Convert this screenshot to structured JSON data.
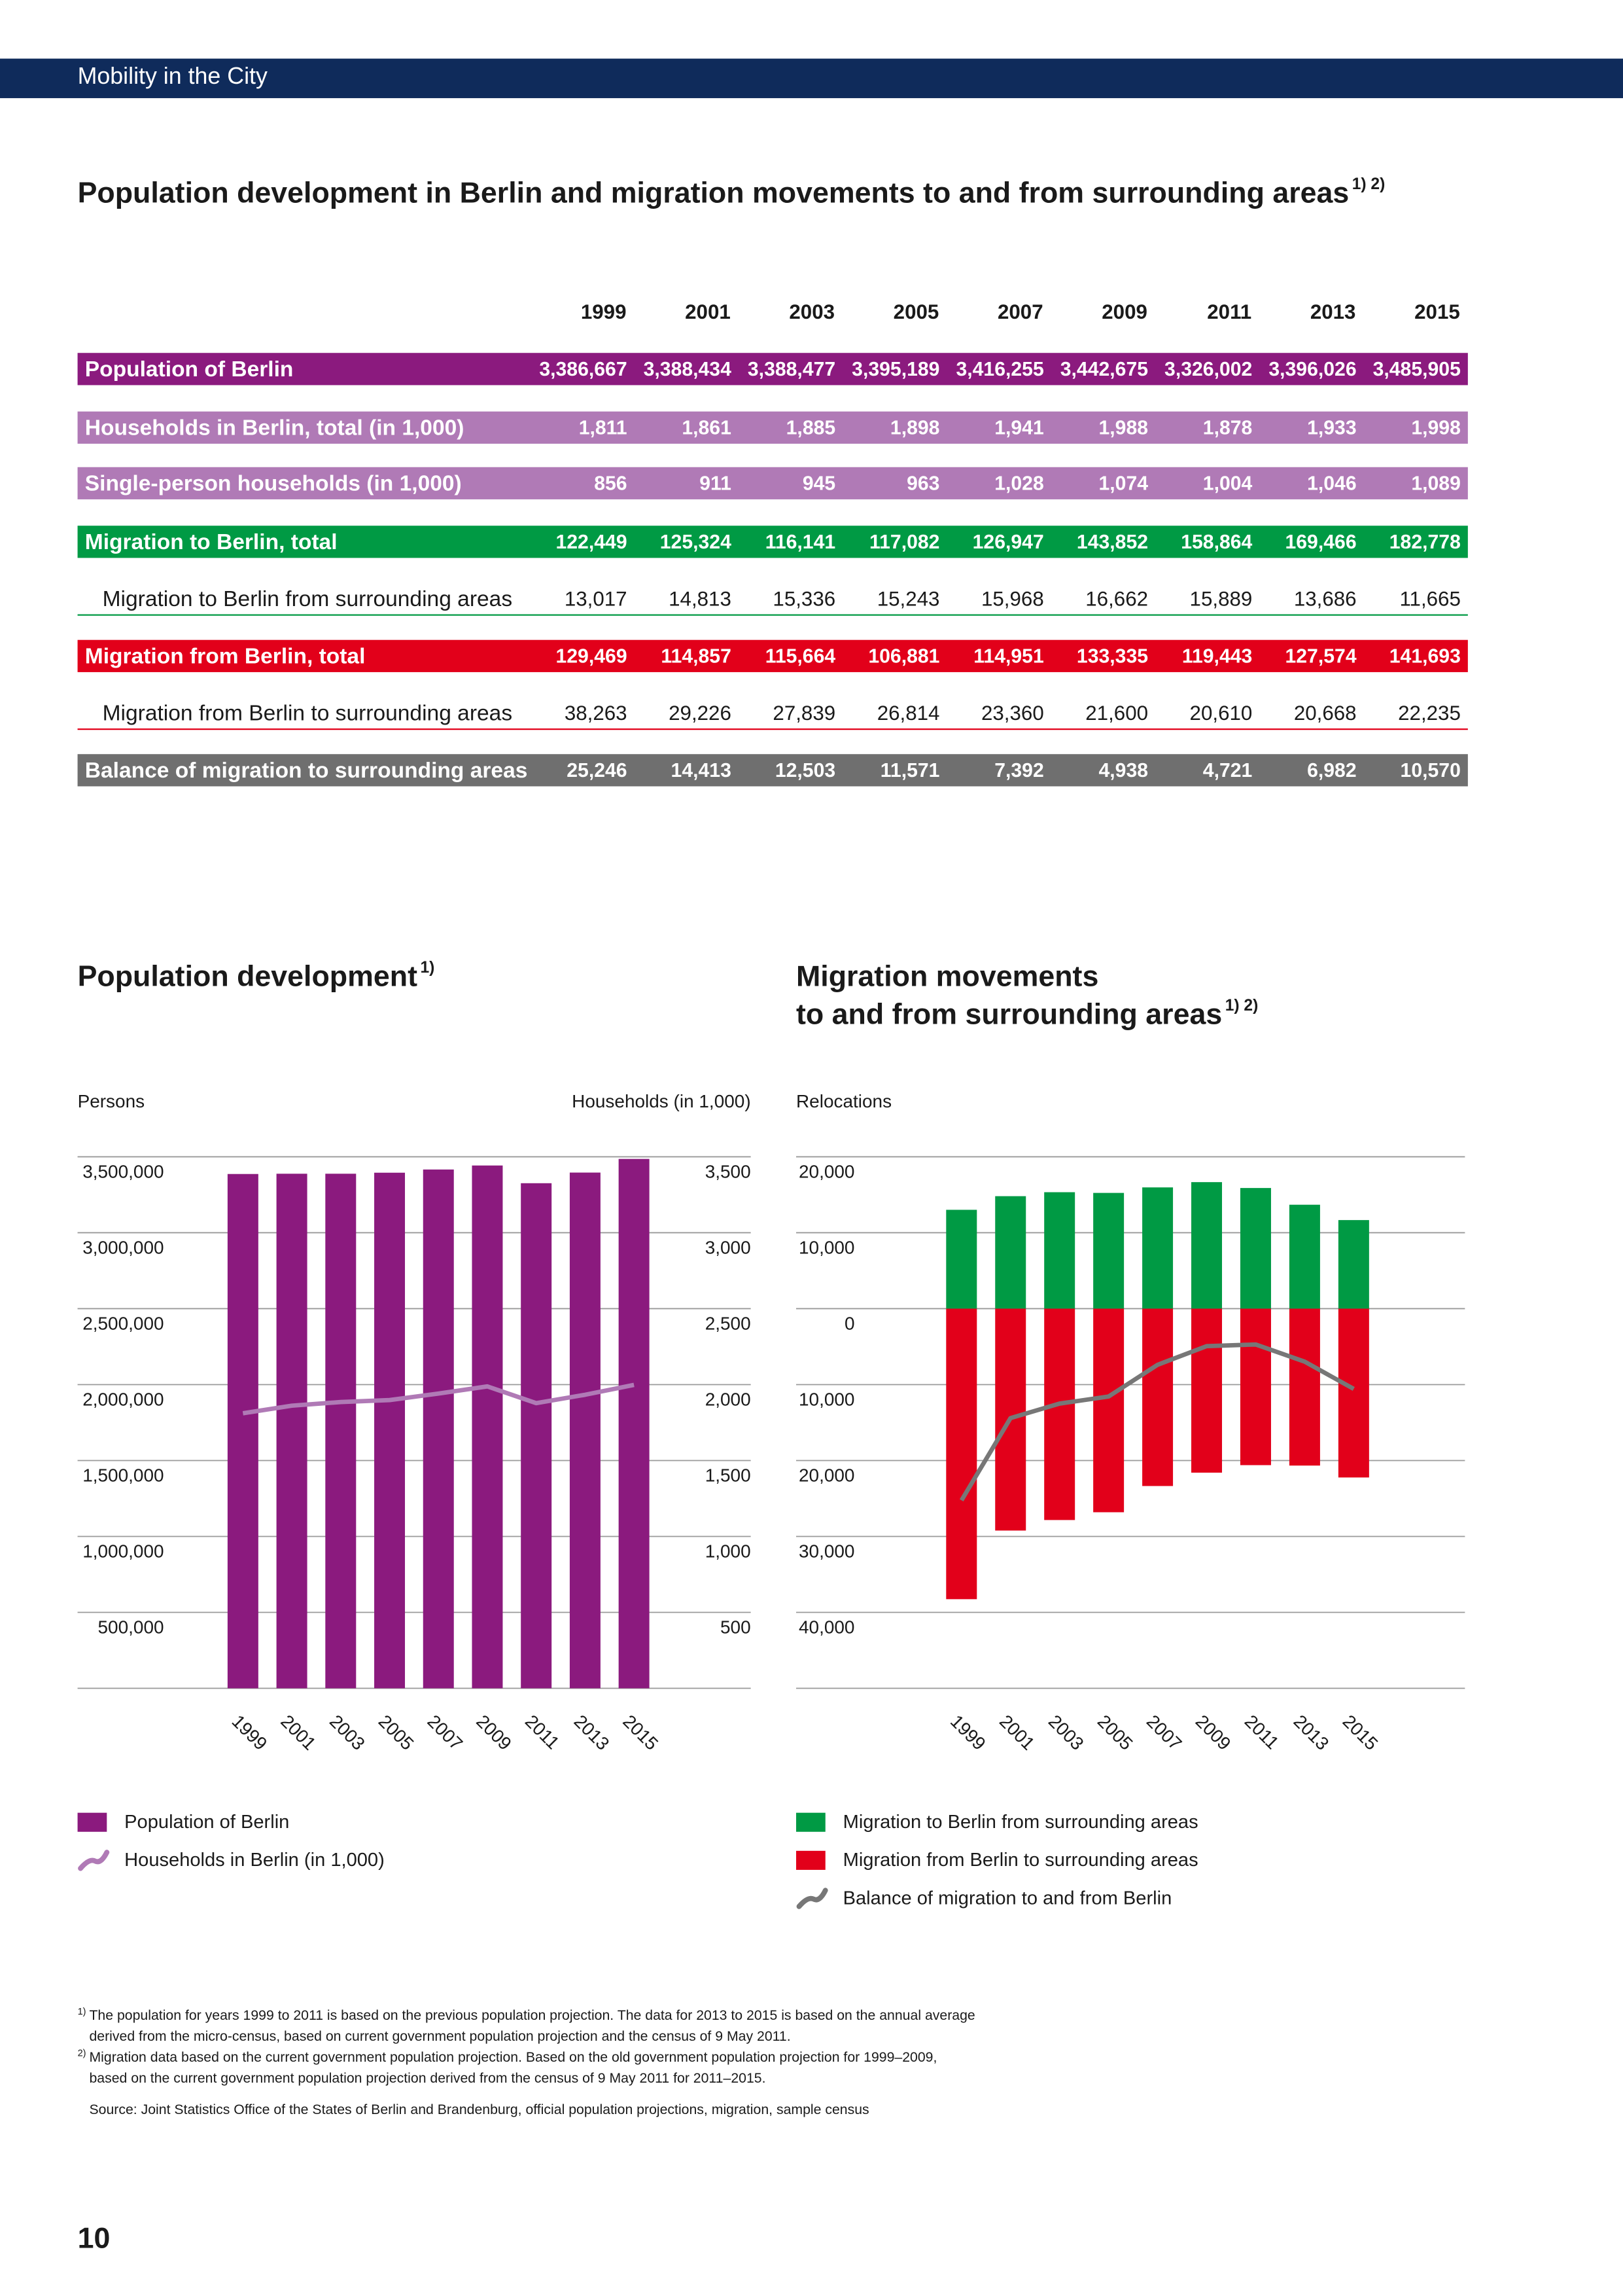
{
  "header": "Mobility in the City",
  "table": {
    "title": "Population development in Berlin and migration movements to and from surrounding areas",
    "title_note": "1) 2)",
    "columns": [
      "1999",
      "2001",
      "2003",
      "2005",
      "2007",
      "2009",
      "2011",
      "2013",
      "2015"
    ],
    "rows": [
      {
        "label": "Population of Berlin",
        "values": [
          "3,386,667",
          "3,388,434",
          "3,388,477",
          "3,395,189",
          "3,416,255",
          "3,442,675",
          "3,326,002",
          "3,396,026",
          "3,485,905"
        ]
      },
      {
        "label": "Households in Berlin, total (in 1,000)",
        "values": [
          "1,811",
          "1,861",
          "1,885",
          "1,898",
          "1,941",
          "1,988",
          "1,878",
          "1,933",
          "1,998"
        ]
      },
      {
        "label": "Single-person households (in 1,000)",
        "values": [
          "856",
          "911",
          "945",
          "963",
          "1,028",
          "1,074",
          "1,004",
          "1,046",
          "1,089"
        ]
      },
      {
        "label": "Migration to Berlin, total",
        "values": [
          "122,449",
          "125,324",
          "116,141",
          "117,082",
          "126,947",
          "143,852",
          "158,864",
          "169,466",
          "182,778"
        ]
      },
      {
        "label": "Migration to Berlin from surrounding areas",
        "values": [
          "13,017",
          "14,813",
          "15,336",
          "15,243",
          "15,968",
          "16,662",
          "15,889",
          "13,686",
          "11,665"
        ]
      },
      {
        "label": "Migration from Berlin, total",
        "values": [
          "129,469",
          "114,857",
          "115,664",
          "106,881",
          "114,951",
          "133,335",
          "119,443",
          "127,574",
          "141,693"
        ]
      },
      {
        "label": "Migration from Berlin to surrounding areas",
        "values": [
          "38,263",
          "29,226",
          "27,839",
          "26,814",
          "23,360",
          "21,600",
          "20,610",
          "20,668",
          "22,235"
        ]
      },
      {
        "label": "Balance of migration to surrounding areas",
        "values": [
          "25,246",
          "14,413",
          "12,503",
          "11,571",
          "7,392",
          "4,938",
          "4,721",
          "6,982",
          "10,570"
        ]
      }
    ]
  },
  "chart_data": [
    {
      "type": "bar",
      "title": [
        "Population development"
      ],
      "title_note": "1)",
      "ylabel": "Persons",
      "y2label": "Households (in 1,000)",
      "categories": [
        "1999",
        "2001",
        "2003",
        "2005",
        "2007",
        "2009",
        "2011",
        "2013",
        "2015"
      ],
      "ylim": [
        0,
        3500000
      ],
      "yticks": [
        {
          "value": 500000,
          "label": "500,000"
        },
        {
          "value": 1000000,
          "label": "1,000,000"
        },
        {
          "value": 1500000,
          "label": "1,500,000"
        },
        {
          "value": 2000000,
          "label": "2,000,000"
        },
        {
          "value": 2500000,
          "label": "2,500,000"
        },
        {
          "value": 3000000,
          "label": "3,000,000"
        },
        {
          "value": 3500000,
          "label": "3,500,000"
        }
      ],
      "y2lim": [
        0,
        3500
      ],
      "y2ticks": [
        500,
        {
          "value": 1000,
          "label": "1,000"
        },
        {
          "value": 1500,
          "label": "1,500"
        },
        {
          "value": 2000,
          "label": "2,000"
        },
        {
          "value": 2500,
          "label": "2,500"
        },
        {
          "value": 3000,
          "label": "3,000"
        },
        {
          "value": 3500,
          "label": "3,500"
        }
      ],
      "grid": true,
      "series": [
        {
          "name": "Population of Berlin",
          "color": "#8b1a7e",
          "values": [
            3386667,
            3388434,
            3388477,
            3395189,
            3416255,
            3442675,
            3326002,
            3396026,
            3485905
          ]
        },
        {
          "name": "Households in Berlin (in 1,000)",
          "type": "line",
          "axis": "y2",
          "color": "#b07ab6",
          "values": [
            1811,
            1861,
            1885,
            1898,
            1941,
            1988,
            1878,
            1933,
            1998
          ]
        }
      ]
    },
    {
      "type": "bar",
      "title": [
        "Migration movements",
        "to and from surrounding areas"
      ],
      "title_note": "1) 2)",
      "ylabel": "Relocations",
      "categories": [
        "1999",
        "2001",
        "2003",
        "2005",
        "2007",
        "2009",
        "2011",
        "2013",
        "2015"
      ],
      "ylim": [
        -50000,
        20000
      ],
      "yticks": [
        {
          "value": -40000,
          "label": "40,000"
        },
        {
          "value": -30000,
          "label": "30,000"
        },
        {
          "value": -20000,
          "label": "20,000"
        },
        {
          "value": -10000,
          "label": "10,000"
        },
        0,
        {
          "value": 10000,
          "label": "10,000"
        },
        {
          "value": 20000,
          "label": "20,000"
        }
      ],
      "grid": true,
      "series": [
        {
          "name": "Migration to Berlin from surrounding areas",
          "color": "#009a44",
          "values": [
            13017,
            14813,
            15336,
            15243,
            15968,
            16662,
            15889,
            13686,
            11665
          ]
        },
        {
          "name": "Migration from Berlin to surrounding areas",
          "color": "#e2001a",
          "values": [
            -38263,
            -29226,
            -27839,
            -26814,
            -23360,
            -21600,
            -20610,
            -20668,
            -22235
          ]
        },
        {
          "name": "Balance of migration to and from Berlin",
          "type": "line",
          "color": "#777777",
          "values": [
            -25246,
            -14413,
            -12503,
            -11571,
            -7392,
            -4938,
            -4721,
            -6982,
            -10570
          ]
        }
      ]
    }
  ],
  "footnotes": [
    {
      "marker": "1)",
      "lines": [
        "The population for years 1999 to 2011 is based on the previous population projection. The data for 2013 to 2015 is based on the annual average",
        "derived from the micro-census, based on current government population projection and the census of 9 May 2011."
      ]
    },
    {
      "marker": "2)",
      "lines": [
        "Migration data based on the current government population projection. Based on the old government population projection for 1999–2009,",
        "based on the current government population projection derived from the census of 9 May 2011 for 2011–2015."
      ]
    }
  ],
  "source": "Source: Joint Statistics Office of the States of Berlin and Brandenburg, official population projections, migration, sample census",
  "page_number": "10"
}
